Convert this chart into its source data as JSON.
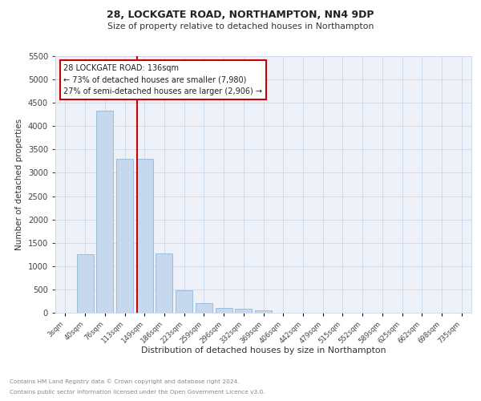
{
  "title1": "28, LOCKGATE ROAD, NORTHAMPTON, NN4 9DP",
  "title2": "Size of property relative to detached houses in Northampton",
  "xlabel": "Distribution of detached houses by size in Northampton",
  "ylabel": "Number of detached properties",
  "footer1": "Contains HM Land Registry data © Crown copyright and database right 2024.",
  "footer2": "Contains public sector information licensed under the Open Government Licence v3.0.",
  "bin_labels": [
    "3sqm",
    "40sqm",
    "76sqm",
    "113sqm",
    "149sqm",
    "186sqm",
    "223sqm",
    "259sqm",
    "296sqm",
    "332sqm",
    "369sqm",
    "406sqm",
    "442sqm",
    "479sqm",
    "515sqm",
    "552sqm",
    "589sqm",
    "625sqm",
    "662sqm",
    "698sqm",
    "735sqm"
  ],
  "bar_values": [
    0,
    1260,
    4330,
    3300,
    3300,
    1280,
    480,
    200,
    100,
    80,
    50,
    0,
    0,
    0,
    0,
    0,
    0,
    0,
    0,
    0,
    0
  ],
  "bar_color": "#c5d8ed",
  "bar_edgecolor": "#93b8d8",
  "property_line_color": "#cc0000",
  "ylim": [
    0,
    5500
  ],
  "yticks": [
    0,
    500,
    1000,
    1500,
    2000,
    2500,
    3000,
    3500,
    4000,
    4500,
    5000,
    5500
  ],
  "annotation_title": "28 LOCKGATE ROAD: 136sqm",
  "annotation_line1": "← 73% of detached houses are smaller (7,980)",
  "annotation_line2": "27% of semi-detached houses are larger (2,906) →",
  "annotation_box_color": "#cc0000",
  "plot_bg": "#eef2f8"
}
